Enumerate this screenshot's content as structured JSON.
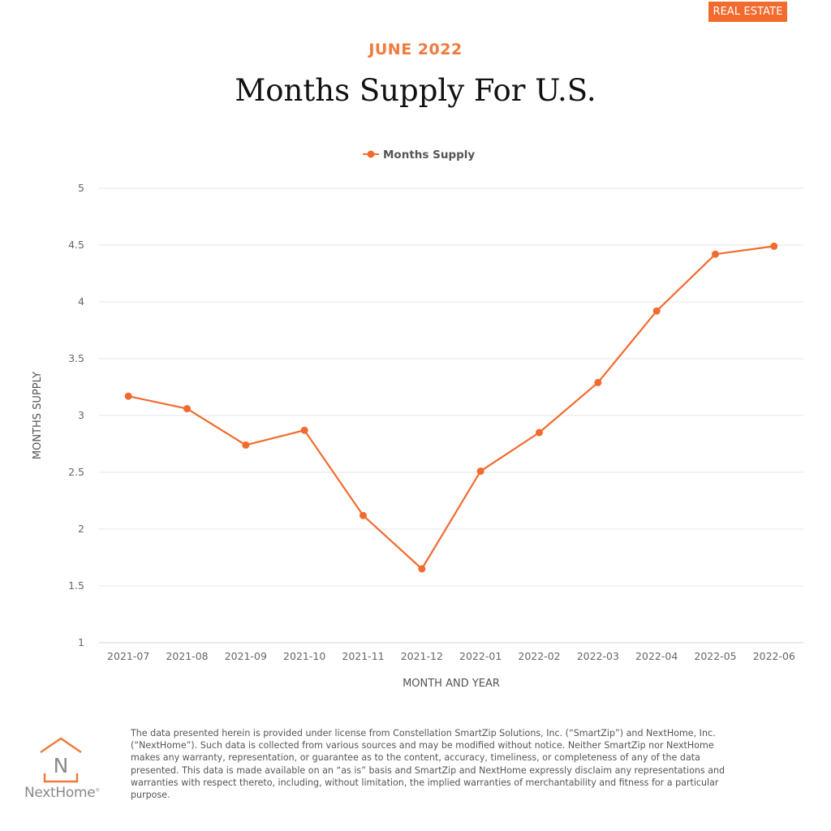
{
  "badge": {
    "label": "REAL ESTATE",
    "color": "#f26b2e"
  },
  "header": {
    "eyebrow": "JUNE 2022",
    "title": "Months Supply For U.S."
  },
  "chart_data": {
    "type": "line",
    "title": "Months Supply For U.S.",
    "xlabel": "MONTH AND YEAR",
    "ylabel": "MONTHS SUPPLY",
    "categories": [
      "2021-07",
      "2021-08",
      "2021-09",
      "2021-10",
      "2021-11",
      "2021-12",
      "2022-01",
      "2022-02",
      "2022-03",
      "2022-04",
      "2022-05",
      "2022-06"
    ],
    "series": [
      {
        "name": "Months Supply",
        "color": "#f26b2e",
        "values": [
          3.17,
          3.06,
          2.74,
          2.87,
          2.12,
          1.65,
          2.51,
          2.85,
          3.29,
          3.92,
          4.42,
          4.49
        ]
      }
    ],
    "ylim": [
      1,
      5
    ],
    "yticks": [
      1,
      1.5,
      2,
      2.5,
      3,
      3.5,
      4,
      4.5,
      5
    ],
    "ytick_labels": [
      "1",
      "1.5",
      "2",
      "2.5",
      "3",
      "3.5",
      "4",
      "4.5",
      "5"
    ],
    "grid": true,
    "legend": "top-center"
  },
  "logo": {
    "letter": "N",
    "brand": "NextHome",
    "trademark": "®"
  },
  "disclaimer": "The data presented herein is provided under license from Constellation SmartZip Solutions, Inc. (“SmartZip”) and NextHome, Inc. (“NextHome”). Such data is collected from various sources and may be modified without notice. Neither SmartZip nor NextHome makes any warranty, representation, or guarantee as to the content, accuracy, timeliness, or completeness of any of the data presented. This data is made available on an “as is” basis and SmartZip and NextHome expressly disclaim any representations and warranties with respect thereto, including, without limitation, the implied warranties of merchantability and fitness for a particular purpose."
}
